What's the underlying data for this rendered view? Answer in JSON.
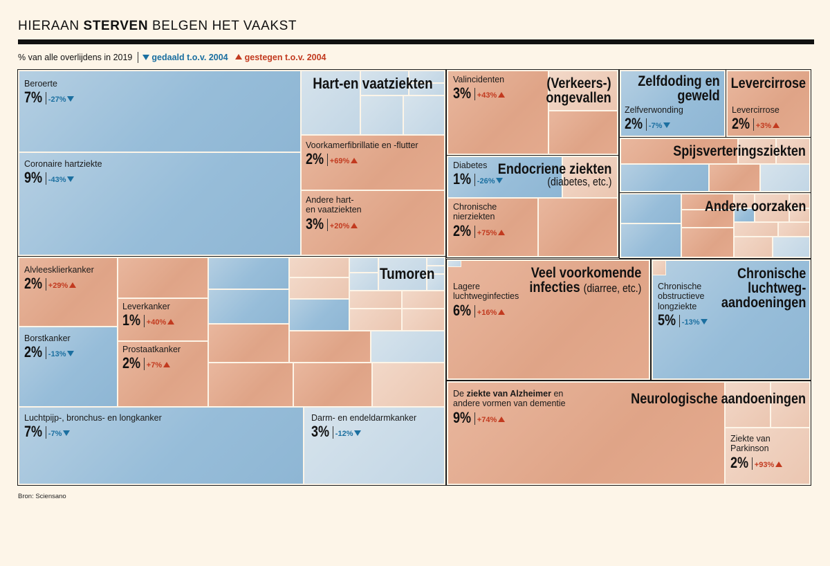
{
  "header": {
    "title_pre": "HIERAAN ",
    "title_bold": "STERVEN",
    "title_post": " BELGEN HET VAAKST",
    "subtitle": "% van alle overlijdens in 2019",
    "legend_down": "gedaald t.o.v. 2004",
    "legend_up": "gestegen t.o.v. 2004"
  },
  "source": "Bron: Sciensano",
  "colors": {
    "down": "#1b6fa0",
    "up": "#c23a1f",
    "background": "#fdf5e8"
  },
  "chart_data": {
    "type": "treemap",
    "title": "HIERAAN STERVEN BELGEN HET VAAKST",
    "unit": "% van alle overlijdens in 2019",
    "groups": [
      {
        "name": "Hart-en vaatziekten",
        "items": [
          {
            "name": "Beroerte",
            "value": 7,
            "change": "-27%",
            "direction": "down"
          },
          {
            "name": "Coronaire hartziekte",
            "value": 9,
            "change": "-43%",
            "direction": "down"
          },
          {
            "name": "Voorkamerfibrillatie en -flutter",
            "value": 2,
            "change": "+69%",
            "direction": "up"
          },
          {
            "name": "Andere hart- en vaatziekten",
            "value": 3,
            "change": "+20%",
            "direction": "up"
          }
        ]
      },
      {
        "name": "Tumoren",
        "items": [
          {
            "name": "Alvleesklierkanker",
            "value": 2,
            "change": "+29%",
            "direction": "up"
          },
          {
            "name": "Leverkanker",
            "value": 1,
            "change": "+40%",
            "direction": "up"
          },
          {
            "name": "Borstkanker",
            "value": 2,
            "change": "-13%",
            "direction": "down"
          },
          {
            "name": "Prostaatkanker",
            "value": 2,
            "change": "+7%",
            "direction": "up"
          },
          {
            "name": "Luchtpijp-, bronchus- en longkanker",
            "value": 7,
            "change": "-7%",
            "direction": "down"
          },
          {
            "name": "Darm- en endeldarmkanker",
            "value": 3,
            "change": "-12%",
            "direction": "down"
          }
        ]
      },
      {
        "name": "(Verkeers-) ongevallen",
        "items": [
          {
            "name": "Valincidenten",
            "value": 3,
            "change": "+43%",
            "direction": "up"
          }
        ]
      },
      {
        "name": "Zelfdoding en geweld",
        "items": [
          {
            "name": "Zelfverwonding",
            "value": 2,
            "change": "-7%",
            "direction": "down"
          }
        ]
      },
      {
        "name": "Levercirrose",
        "items": [
          {
            "name": "Levercirrose",
            "value": 2,
            "change": "+3%",
            "direction": "up"
          }
        ]
      },
      {
        "name": "Endocriene ziekten",
        "subtitle": "(diabetes, etc.)",
        "items": [
          {
            "name": "Diabetes",
            "value": 1,
            "change": "-26%",
            "direction": "down"
          },
          {
            "name": "Chronische nierziekten",
            "value": 2,
            "change": "+75%",
            "direction": "up"
          }
        ]
      },
      {
        "name": "Spijsverteringsziekten",
        "items": []
      },
      {
        "name": "Andere oorzaken",
        "items": []
      },
      {
        "name": "Veel voorkomende infecties",
        "subtitle": "(diarree, etc.)",
        "items": [
          {
            "name": "Lagere luchtweginfecties",
            "value": 6,
            "change": "+16%",
            "direction": "up"
          }
        ]
      },
      {
        "name": "Chronische luchtweg-aandoeningen",
        "items": [
          {
            "name": "Chronische obstructieve longziekte",
            "value": 5,
            "change": "-13%",
            "direction": "down"
          }
        ]
      },
      {
        "name": "Neurologische aandoeningen",
        "items": [
          {
            "name": "De ziekte van Alzheimer en andere vormen van dementie",
            "value": 9,
            "change": "+74%",
            "direction": "up"
          },
          {
            "name": "Ziekte van Parkinson",
            "value": 2,
            "change": "+93%",
            "direction": "up"
          }
        ]
      }
    ]
  },
  "labels": {
    "beroerte": {
      "name": "Beroerte",
      "pct": "7%",
      "chg": "-27%"
    },
    "coronaire": {
      "name": "Coronaire hartziekte",
      "pct": "9%",
      "chg": "-43%"
    },
    "voorkamer": {
      "name": "Voorkamerfibrillatie en -flutter",
      "pct": "2%",
      "chg": "+69%"
    },
    "anderehart": {
      "name1": "Andere hart-",
      "name2": "en vaatziekten",
      "pct": "3%",
      "chg": "+20%"
    },
    "alvlees": {
      "name": "Alvleesklierkanker",
      "pct": "2%",
      "chg": "+29%"
    },
    "lever": {
      "name": "Leverkanker",
      "pct": "1%",
      "chg": "+40%"
    },
    "borst": {
      "name": "Borstkanker",
      "pct": "2%",
      "chg": "-13%"
    },
    "prostaat": {
      "name": "Prostaatkanker",
      "pct": "2%",
      "chg": "+7%"
    },
    "long": {
      "name": "Luchtpijp-, bronchus- en longkanker",
      "pct": "7%",
      "chg": "-7%"
    },
    "darm": {
      "name": "Darm- en endeldarmkanker",
      "pct": "3%",
      "chg": "-12%"
    },
    "val": {
      "name": "Valincidenten",
      "pct": "3%",
      "chg": "+43%"
    },
    "zelf": {
      "name": "Zelfverwonding",
      "pct": "2%",
      "chg": "-7%"
    },
    "cirrose": {
      "name": "Levercirrose",
      "pct": "2%",
      "chg": "+3%"
    },
    "diabetes": {
      "name": "Diabetes",
      "pct": "1%",
      "chg": "-26%"
    },
    "nier": {
      "name1": "Chronische",
      "name2": "nierziekten",
      "pct": "2%",
      "chg": "+75%"
    },
    "lager": {
      "name1": "Lagere",
      "name2": "luchtweginfecties",
      "pct": "6%",
      "chg": "+16%"
    },
    "copd": {
      "name1": "Chronische",
      "name2": "obstructieve",
      "name3": "longziekte",
      "pct": "5%",
      "chg": "-13%"
    },
    "alz": {
      "name_pre": "De ",
      "name_bold": "ziekte van Alzheimer",
      "name_post": " en",
      "name2": "andere vormen van dementie",
      "pct": "9%",
      "chg": "+74%"
    },
    "parkinson": {
      "name1": "Ziekte van",
      "name2": "Parkinson",
      "pct": "2%",
      "chg": "+93%"
    }
  },
  "group_titles": {
    "hart": "Hart-en vaatziekten",
    "tumoren": "Tumoren",
    "verkeer1": "(Verkeers-)",
    "verkeer2": "ongevallen",
    "zelfdoding1": "Zelfdoding en",
    "zelfdoding2": "geweld",
    "levercirrose": "Levercirrose",
    "endo1": "Endocriene ziekten",
    "endo2": "(diabetes, etc.)",
    "spijs": "Spijsverteringsziekten",
    "andere": "Andere oorzaken",
    "infect1": "Veel voorkomende",
    "infect2": "infecties",
    "infect3": "(diarree, etc.)",
    "luchtweg1": "Chronische",
    "luchtweg2": "luchtweg-",
    "luchtweg3": "aandoeningen",
    "neuro": "Neurologische aandoeningen"
  }
}
